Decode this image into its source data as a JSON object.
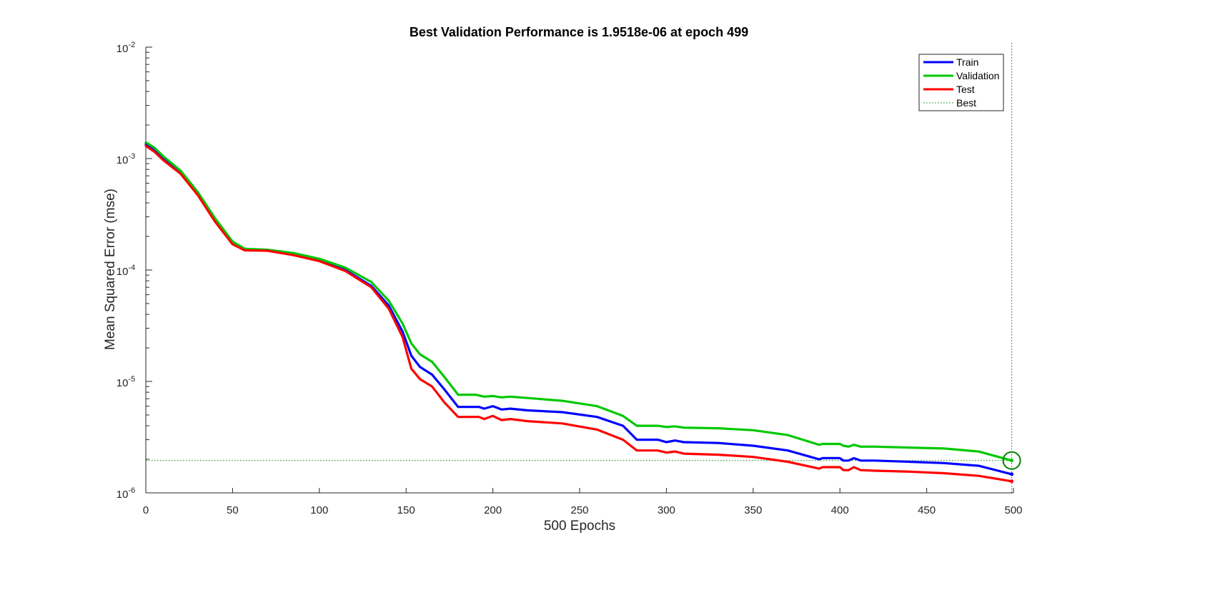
{
  "chart_data": {
    "type": "line",
    "title": "Best Validation Performance is 1.9518e-06 at epoch 499",
    "xlabel": "500 Epochs",
    "ylabel": "Mean Squared Error  (mse)",
    "xlim": [
      0,
      500
    ],
    "ylim": [
      1e-06,
      0.01
    ],
    "yscale": "log",
    "grid": false,
    "legend_position": "top-right",
    "xticks": [
      0,
      50,
      100,
      150,
      200,
      250,
      300,
      350,
      400,
      450,
      500
    ],
    "yticks": [
      {
        "base": "10",
        "exp": "-6",
        "value": 1e-06
      },
      {
        "base": "10",
        "exp": "-5",
        "value": 1e-05
      },
      {
        "base": "10",
        "exp": "-4",
        "value": 0.0001
      },
      {
        "base": "10",
        "exp": "-3",
        "value": 0.001
      },
      {
        "base": "10",
        "exp": "-2",
        "value": 0.01
      }
    ],
    "series": [
      {
        "name": "Train",
        "color": "#0000ff",
        "points": [
          [
            0,
            0.00135
          ],
          [
            5,
            0.0012
          ],
          [
            10,
            0.001
          ],
          [
            20,
            0.00075
          ],
          [
            30,
            0.00048
          ],
          [
            40,
            0.00028
          ],
          [
            50,
            0.000175
          ],
          [
            57,
            0.000152
          ],
          [
            70,
            0.00015
          ],
          [
            85,
            0.000138
          ],
          [
            100,
            0.000122
          ],
          [
            115,
            0.0001
          ],
          [
            130,
            7.2e-05
          ],
          [
            140,
            4.8e-05
          ],
          [
            148,
            2.8e-05
          ],
          [
            153,
            1.7e-05
          ],
          [
            158,
            1.35e-05
          ],
          [
            165,
            1.15e-05
          ],
          [
            172,
            8.5e-06
          ],
          [
            180,
            5.9e-06
          ],
          [
            192,
            5.9e-06
          ],
          [
            195,
            5.7e-06
          ],
          [
            200,
            6e-06
          ],
          [
            205,
            5.6e-06
          ],
          [
            210,
            5.7e-06
          ],
          [
            220,
            5.5e-06
          ],
          [
            240,
            5.3e-06
          ],
          [
            260,
            4.8e-06
          ],
          [
            275,
            4e-06
          ],
          [
            283,
            3e-06
          ],
          [
            295,
            3e-06
          ],
          [
            300,
            2.85e-06
          ],
          [
            305,
            2.95e-06
          ],
          [
            310,
            2.85e-06
          ],
          [
            330,
            2.8e-06
          ],
          [
            350,
            2.65e-06
          ],
          [
            370,
            2.4e-06
          ],
          [
            388,
            2e-06
          ],
          [
            390,
            2.05e-06
          ],
          [
            400,
            2.05e-06
          ],
          [
            402,
            1.95e-06
          ],
          [
            405,
            1.95e-06
          ],
          [
            408,
            2.05e-06
          ],
          [
            412,
            1.95e-06
          ],
          [
            420,
            1.95e-06
          ],
          [
            440,
            1.9e-06
          ],
          [
            460,
            1.85e-06
          ],
          [
            480,
            1.75e-06
          ],
          [
            499,
            1.47e-06
          ]
        ]
      },
      {
        "name": "Validation",
        "color": "#00c800",
        "points": [
          [
            0,
            0.0014
          ],
          [
            5,
            0.00125
          ],
          [
            10,
            0.00105
          ],
          [
            20,
            0.00078
          ],
          [
            30,
            0.0005
          ],
          [
            40,
            0.00029
          ],
          [
            50,
            0.00018
          ],
          [
            57,
            0.000155
          ],
          [
            70,
            0.000152
          ],
          [
            85,
            0.000142
          ],
          [
            100,
            0.000126
          ],
          [
            115,
            0.000105
          ],
          [
            130,
            7.8e-05
          ],
          [
            140,
            5.3e-05
          ],
          [
            148,
            3.3e-05
          ],
          [
            153,
            2.2e-05
          ],
          [
            158,
            1.75e-05
          ],
          [
            165,
            1.5e-05
          ],
          [
            172,
            1.1e-05
          ],
          [
            180,
            7.6e-06
          ],
          [
            190,
            7.6e-06
          ],
          [
            195,
            7.3e-06
          ],
          [
            200,
            7.4e-06
          ],
          [
            205,
            7.2e-06
          ],
          [
            210,
            7.3e-06
          ],
          [
            220,
            7.1e-06
          ],
          [
            240,
            6.7e-06
          ],
          [
            260,
            6e-06
          ],
          [
            275,
            4.9e-06
          ],
          [
            283,
            4e-06
          ],
          [
            295,
            4e-06
          ],
          [
            300,
            3.9e-06
          ],
          [
            305,
            3.95e-06
          ],
          [
            310,
            3.85e-06
          ],
          [
            330,
            3.8e-06
          ],
          [
            350,
            3.65e-06
          ],
          [
            370,
            3.3e-06
          ],
          [
            388,
            2.7e-06
          ],
          [
            390,
            2.75e-06
          ],
          [
            400,
            2.75e-06
          ],
          [
            402,
            2.65e-06
          ],
          [
            405,
            2.6e-06
          ],
          [
            408,
            2.7e-06
          ],
          [
            412,
            2.6e-06
          ],
          [
            420,
            2.6e-06
          ],
          [
            440,
            2.55e-06
          ],
          [
            460,
            2.5e-06
          ],
          [
            480,
            2.35e-06
          ],
          [
            499,
            1.95e-06
          ]
        ]
      },
      {
        "name": "Test",
        "color": "#ff0000",
        "points": [
          [
            0,
            0.0013
          ],
          [
            5,
            0.00115
          ],
          [
            10,
            0.00097
          ],
          [
            20,
            0.00073
          ],
          [
            30,
            0.00047
          ],
          [
            40,
            0.00027
          ],
          [
            50,
            0.00017
          ],
          [
            57,
            0.00015
          ],
          [
            70,
            0.000149
          ],
          [
            85,
            0.000136
          ],
          [
            100,
            0.00012
          ],
          [
            115,
            9.8e-05
          ],
          [
            130,
            7e-05
          ],
          [
            140,
            4.5e-05
          ],
          [
            148,
            2.5e-05
          ],
          [
            153,
            1.3e-05
          ],
          [
            158,
            1.05e-05
          ],
          [
            165,
            9e-06
          ],
          [
            172,
            6.5e-06
          ],
          [
            180,
            4.8e-06
          ],
          [
            192,
            4.8e-06
          ],
          [
            195,
            4.6e-06
          ],
          [
            200,
            4.9e-06
          ],
          [
            205,
            4.5e-06
          ],
          [
            210,
            4.6e-06
          ],
          [
            220,
            4.4e-06
          ],
          [
            240,
            4.2e-06
          ],
          [
            260,
            3.7e-06
          ],
          [
            275,
            3e-06
          ],
          [
            283,
            2.4e-06
          ],
          [
            295,
            2.4e-06
          ],
          [
            300,
            2.3e-06
          ],
          [
            305,
            2.35e-06
          ],
          [
            310,
            2.25e-06
          ],
          [
            330,
            2.2e-06
          ],
          [
            350,
            2.1e-06
          ],
          [
            370,
            1.9e-06
          ],
          [
            388,
            1.65e-06
          ],
          [
            390,
            1.7e-06
          ],
          [
            400,
            1.7e-06
          ],
          [
            402,
            1.6e-06
          ],
          [
            405,
            1.6e-06
          ],
          [
            408,
            1.7e-06
          ],
          [
            412,
            1.6e-06
          ],
          [
            420,
            1.58e-06
          ],
          [
            440,
            1.55e-06
          ],
          [
            460,
            1.5e-06
          ],
          [
            480,
            1.42e-06
          ],
          [
            499,
            1.27e-06
          ]
        ]
      }
    ],
    "best": {
      "name": "Best",
      "color": "#008000",
      "epoch": 499,
      "value": 1.9518e-06
    }
  }
}
